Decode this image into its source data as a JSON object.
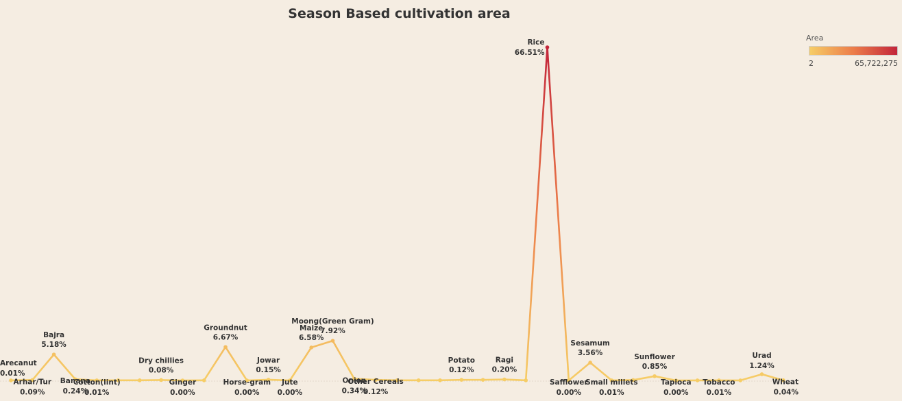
{
  "chart_data": {
    "type": "line",
    "title": "Season Based cultivation area",
    "legend": {
      "title": "Area",
      "min_label": "2",
      "max_label": "65,722,275",
      "colors": [
        "#f6cd66",
        "#ec7d4a",
        "#c3253a"
      ],
      "placement": "top-right"
    },
    "grid": false,
    "points": [
      {
        "crop": "Arecanut",
        "pct": "0.01%",
        "value": 0.01
      },
      {
        "crop": "Arhar/Tur",
        "pct": "0.09%",
        "value": 0.09
      },
      {
        "crop": "Bajra",
        "pct": "5.18%",
        "value": 5.18
      },
      {
        "crop": "Banana",
        "pct": "0.24%",
        "value": 0.24
      },
      {
        "crop": "Cotton(lint)",
        "pct": "0.01%",
        "value": 0.01
      },
      {
        "crop": "",
        "pct": "",
        "value": 0.02
      },
      {
        "crop": "",
        "pct": "",
        "value": 0.02
      },
      {
        "crop": "Dry chillies",
        "pct": "0.08%",
        "value": 0.08
      },
      {
        "crop": "Ginger",
        "pct": "0.00%",
        "value": 0.0
      },
      {
        "crop": "",
        "pct": "",
        "value": 0.02
      },
      {
        "crop": "Groundnut",
        "pct": "6.67%",
        "value": 6.67
      },
      {
        "crop": "Horse-gram",
        "pct": "0.00%",
        "value": 0.0
      },
      {
        "crop": "Jowar",
        "pct": "0.15%",
        "value": 0.15
      },
      {
        "crop": "Jute",
        "pct": "0.00%",
        "value": 0.0
      },
      {
        "crop": "Maize",
        "pct": "6.58%",
        "value": 6.58
      },
      {
        "crop": "Moong(Green Gram)",
        "pct": "7.92%",
        "value": 7.92
      },
      {
        "crop": "Onion",
        "pct": "0.34%",
        "value": 0.34
      },
      {
        "crop": "Other Cereals",
        "pct": "0.12%",
        "value": 0.12
      },
      {
        "crop": "",
        "pct": "",
        "value": 0.03
      },
      {
        "crop": "",
        "pct": "",
        "value": 0.03
      },
      {
        "crop": "",
        "pct": "",
        "value": 0.03
      },
      {
        "crop": "Potato",
        "pct": "0.12%",
        "value": 0.12
      },
      {
        "crop": "",
        "pct": "",
        "value": 0.12
      },
      {
        "crop": "Ragi",
        "pct": "0.20%",
        "value": 0.2
      },
      {
        "crop": "",
        "pct": "",
        "value": 0.02
      },
      {
        "crop": "Rice",
        "pct": "66.51%",
        "value": 66.51
      },
      {
        "crop": "Safflower",
        "pct": "0.00%",
        "value": 0.0
      },
      {
        "crop": "Sesamum",
        "pct": "3.56%",
        "value": 3.56
      },
      {
        "crop": "Small millets",
        "pct": "0.01%",
        "value": 0.01
      },
      {
        "crop": "",
        "pct": "",
        "value": 0.08
      },
      {
        "crop": "Sunflower",
        "pct": "0.85%",
        "value": 0.85
      },
      {
        "crop": "Tapioca",
        "pct": "0.00%",
        "value": 0.0
      },
      {
        "crop": "",
        "pct": "",
        "value": 0.01
      },
      {
        "crop": "Tobacco",
        "pct": "0.01%",
        "value": 0.01
      },
      {
        "crop": "",
        "pct": "",
        "value": 0.01
      },
      {
        "crop": "Urad",
        "pct": "1.24%",
        "value": 1.24
      },
      {
        "crop": "Wheat",
        "pct": "0.04%",
        "value": 0.04
      }
    ]
  }
}
